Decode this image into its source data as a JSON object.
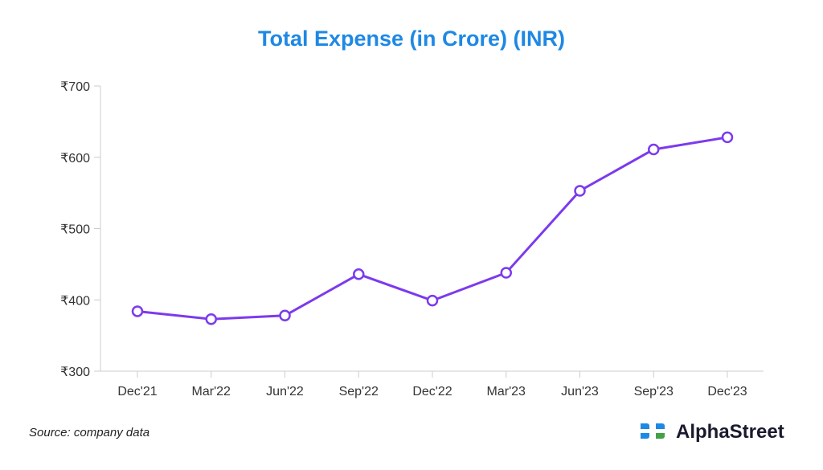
{
  "chart_data": {
    "type": "line",
    "title": "Total Expense (in Crore) (INR)",
    "categories": [
      "Dec'21",
      "Mar'22",
      "Jun'22",
      "Sep'22",
      "Dec'22",
      "Mar'23",
      "Jun'23",
      "Sep'23",
      "Dec'23"
    ],
    "series": [
      {
        "values": [
          384,
          373,
          378,
          436,
          399,
          438,
          553,
          611,
          628
        ]
      }
    ],
    "yticks": [
      "₹300",
      "₹400",
      "₹500",
      "₹600",
      "₹700"
    ],
    "ytick_values": [
      300,
      400,
      500,
      600,
      700
    ],
    "ylim": [
      300,
      700
    ],
    "grid": false,
    "colors": {
      "line": "#7c3aed",
      "title": "#1e88e5",
      "axis": "#cccccc"
    }
  },
  "footer": {
    "source": "Source: company data",
    "brand": "AlphaStreet"
  }
}
